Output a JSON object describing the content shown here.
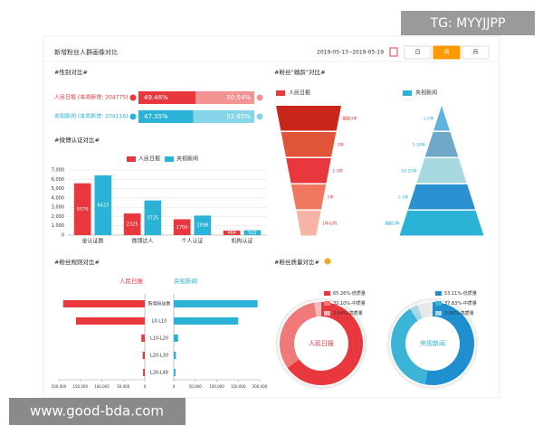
{
  "header": {
    "title": "新增粉丝人群画像对比",
    "date_range": "2019-05-13--2019-05-19",
    "buttons": [
      "日",
      "周",
      "月"
    ]
  },
  "watermarks": [
    "TG: MYYJJPP",
    "www.good-bda.com"
  ],
  "chart_data": [
    {
      "type": "share-bar",
      "title": "#性别对比#",
      "categories": [
        "人民日报 (本周新增: 204775)",
        "央视新闻 (本周新增: 204116)"
      ],
      "colors": [
        [
          "#e8383d",
          "#f39494"
        ],
        [
          "#2ab3d6",
          "#86d6ea"
        ]
      ],
      "values": [
        [
          49.46,
          50.54
        ],
        [
          47.35,
          52.65
        ]
      ],
      "value_labels": [
        [
          "49.46%",
          "50.54%"
        ],
        [
          "47.35%",
          "52.65%"
        ]
      ]
    },
    {
      "type": "bar",
      "title": "#微博认证对比#",
      "categories": [
        "金认证数",
        "微博达人",
        "个人认证",
        "机构认证"
      ],
      "series": [
        {
          "name": "人民日报",
          "color": "#e8383d",
          "values": [
            5570,
            2325,
            1700,
            484
          ]
        },
        {
          "name": "央视新闻",
          "color": "#2ab3d6",
          "values": [
            6423,
            3725,
            2098,
            522
          ]
        }
      ],
      "ylim": [
        0,
        7000
      ],
      "yticks": [
        0,
        {
          "value": 1000,
          "label": "1,000"
        },
        {
          "value": 2000,
          "label": "2,000"
        },
        {
          "value": 3000,
          "label": "3,000"
        },
        {
          "value": 4000,
          "label": "4,000"
        },
        {
          "value": 5000,
          "label": "5,000"
        },
        {
          "value": 6000,
          "label": "6,000"
        },
        {
          "value": 7000,
          "label": "7,000"
        }
      ],
      "grid": true
    },
    {
      "type": "funnel",
      "title": "#粉丝“婚龄”对比#",
      "series": [
        {
          "name": "人民日报",
          "color": "#e8383d",
          "colors": [
            "#c8261b",
            "#e0553a",
            "#e8383d",
            "#f07860",
            "#f6b3a6"
          ],
          "labels": [
            "婚龄3年",
            "3年",
            "1-3年",
            "1年",
            "1年以内"
          ]
        },
        {
          "name": "央视新闻",
          "color": "#2ab3d6",
          "colors": [
            "#5fb3e0",
            "#6fa8c8",
            "#a8d8e0",
            "#2a90d0",
            "#2ab3d6"
          ],
          "labels": [
            "1-5年",
            "5-10年",
            "10-20年",
            "1-3年",
            "婚龄3年"
          ]
        }
      ]
    },
    {
      "type": "butterfly",
      "title": "#粉丝规则对比#",
      "categories": [
        "新增粉丝数",
        "L0-L10",
        "L10-L20",
        "L20-L30",
        "L30-L48"
      ],
      "series": [
        {
          "name": "人民日报",
          "color": "#e8383d",
          "values": [
            190000,
            160000,
            8000,
            5000,
            4000
          ]
        },
        {
          "name": "央视新闻",
          "color": "#2ab3d6",
          "values": [
            195000,
            150000,
            10000,
            5000,
            4000
          ]
        }
      ],
      "xlim": [
        0,
        200000
      ],
      "xticks": [
        0,
        {
          "value": 50000,
          "label": "50,000"
        },
        {
          "value": 100000,
          "label": "100,000"
        },
        {
          "value": 150000,
          "label": "150,000"
        },
        {
          "value": 200000,
          "label": "200,000"
        }
      ]
    },
    {
      "type": "donut",
      "title": "#粉丝质量对比#",
      "series": [
        {
          "name": "人民日报",
          "color": "#e8383d",
          "colors": [
            "#e8383d",
            "#f07a7a",
            "#f6b8b8"
          ],
          "values": [
            65.26,
            32.1,
            2.64
          ],
          "value_labels": [
            "65.26%-低质量",
            "32.10%-中质量",
            "2.64%-高质量"
          ]
        },
        {
          "name": "央视新闻",
          "color": "#2ab3d6",
          "colors": [
            "#1f8fcf",
            "#3bb4d8",
            "#a8d8e8"
          ],
          "values": [
            53.11,
            37.83,
            3.06
          ],
          "value_labels": [
            "53.11%-低质量",
            "37.83%-中质量",
            "3.06%-高质量"
          ]
        }
      ]
    }
  ]
}
